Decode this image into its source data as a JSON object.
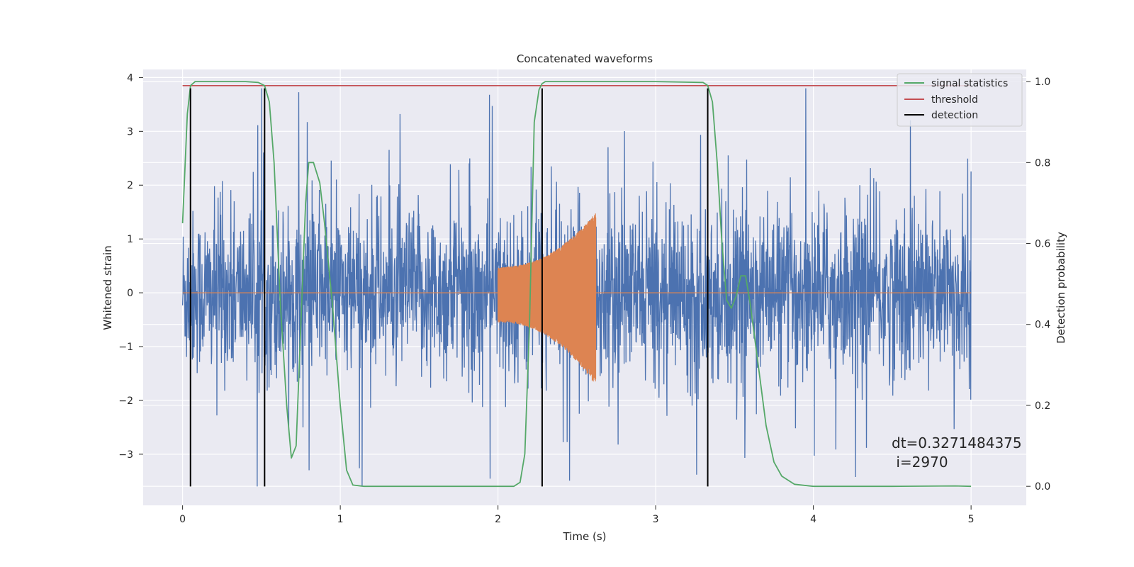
{
  "chart_data": {
    "type": "line",
    "title": "Concatenated waveforms",
    "xlabel": "Time (s)",
    "ylabel": "Whitened strain",
    "y2label": "Detection probability",
    "xlim": [
      -0.25,
      5.35
    ],
    "ylim": [
      -3.95,
      4.15
    ],
    "y2lim": [
      -0.047,
      1.03
    ],
    "xticks": [
      0,
      1,
      2,
      3,
      4,
      5
    ],
    "yticks": [
      -3,
      -2,
      -1,
      0,
      1,
      2,
      3,
      4
    ],
    "y2ticks": [
      0.0,
      0.2,
      0.4,
      0.6,
      0.8,
      1.0
    ],
    "grid": true,
    "legend_position": "upper right",
    "legend": [
      "signal statistics",
      "threshold",
      "detection"
    ],
    "colors": {
      "noise": "#4c72b0",
      "injection": "#dd8452",
      "signal_statistics": "#55a868",
      "threshold": "#c44e52",
      "detection": "#000000",
      "axes_bg": "#eaeaf2",
      "grid": "#ffffff"
    },
    "series": [
      {
        "name": "signal statistics",
        "axis": "right",
        "x": [
          0.0,
          0.03,
          0.05,
          0.08,
          0.12,
          0.2,
          0.3,
          0.4,
          0.48,
          0.52,
          0.55,
          0.58,
          0.62,
          0.66,
          0.69,
          0.72,
          0.75,
          0.78,
          0.8,
          0.83,
          0.87,
          0.9,
          0.95,
          1.0,
          1.04,
          1.08,
          1.15,
          1.5,
          2.0,
          2.1,
          2.14,
          2.17,
          2.2,
          2.23,
          2.26,
          2.28,
          2.3,
          2.35,
          2.5,
          3.0,
          3.3,
          3.33,
          3.36,
          3.39,
          3.42,
          3.45,
          3.48,
          3.51,
          3.54,
          3.57,
          3.6,
          3.65,
          3.7,
          3.75,
          3.8,
          3.88,
          4.0,
          4.5,
          4.9,
          5.0
        ],
        "y": [
          0.65,
          0.92,
          0.99,
          1.0,
          1.0,
          1.0,
          1.0,
          1.0,
          0.998,
          0.99,
          0.95,
          0.8,
          0.45,
          0.2,
          0.07,
          0.1,
          0.4,
          0.7,
          0.8,
          0.8,
          0.75,
          0.65,
          0.45,
          0.2,
          0.04,
          0.003,
          0.0,
          0.0,
          0.0,
          0.0,
          0.01,
          0.08,
          0.4,
          0.9,
          0.98,
          0.995,
          1.0,
          1.0,
          1.0,
          1.0,
          0.998,
          0.99,
          0.95,
          0.8,
          0.6,
          0.46,
          0.44,
          0.47,
          0.52,
          0.52,
          0.45,
          0.3,
          0.15,
          0.06,
          0.025,
          0.005,
          0.0,
          0.0,
          0.001,
          0.0
        ]
      },
      {
        "name": "threshold",
        "axis": "right",
        "x": [
          0.0,
          5.0
        ],
        "y": [
          0.99,
          0.99
        ]
      },
      {
        "name": "detection",
        "axis": "left",
        "x_positions": [
          0.05,
          0.52,
          2.28,
          3.33
        ],
        "y_range": [
          -3.6,
          3.8
        ]
      },
      {
        "name": "",
        "axis": "left",
        "description_kind": "noise",
        "x_range": [
          0.0,
          5.0
        ],
        "envelope_range": [
          -3.6,
          3.8
        ]
      },
      {
        "name": "",
        "axis": "left",
        "description_kind": "injection chirp",
        "x_range": [
          2.0,
          2.62
        ],
        "start_amplitude": 0.48,
        "peak_amplitude": 1.5
      }
    ],
    "annotations": [
      {
        "text": "dt=0.3271484375",
        "x": 4.5,
        "y": -2.75
      },
      {
        "text": " i=2970",
        "x": 4.5,
        "y": -3.12
      }
    ]
  }
}
